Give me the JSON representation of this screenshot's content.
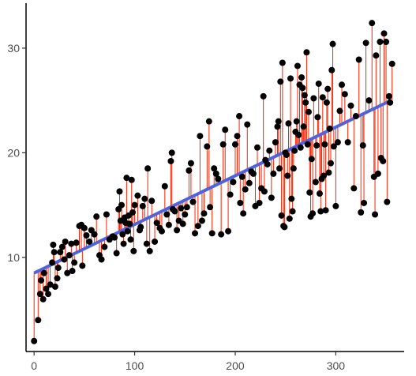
{
  "chart_data": {
    "type": "scatter",
    "title": "",
    "xlabel": "",
    "ylabel": "",
    "xlim": [
      -8,
      368
    ],
    "ylim": [
      1,
      34.3
    ],
    "x_ticks": [
      0,
      100,
      200,
      300
    ],
    "y_ticks": [
      10,
      20,
      30
    ],
    "x_tick_labels": [
      "0",
      "100",
      "200",
      "300"
    ],
    "y_tick_labels": [
      "10",
      "20",
      "30"
    ],
    "grid": false,
    "legend": "none",
    "regression": {
      "intercept": 8.5,
      "slope": 0.0465,
      "x_range": [
        0,
        355
      ],
      "color": "#4f63dd"
    },
    "residual_color": "#ff2200",
    "point_color": "#000000",
    "points": [
      [
        0,
        2.0
      ],
      [
        4,
        4.0
      ],
      [
        6,
        6.5
      ],
      [
        7,
        7.8
      ],
      [
        9,
        6.0
      ],
      [
        10,
        8.5
      ],
      [
        12,
        7.0
      ],
      [
        14,
        6.5
      ],
      [
        16,
        7.4
      ],
      [
        18,
        9.5
      ],
      [
        19,
        11.2
      ],
      [
        20,
        10.5
      ],
      [
        21,
        7.2
      ],
      [
        23,
        8.0
      ],
      [
        24,
        9.0
      ],
      [
        26,
        10.5
      ],
      [
        28,
        11.0
      ],
      [
        30,
        9.8
      ],
      [
        31,
        11.5
      ],
      [
        33,
        8.5
      ],
      [
        35,
        10.2
      ],
      [
        37,
        11.3
      ],
      [
        38,
        8.7
      ],
      [
        40,
        9.5
      ],
      [
        42,
        11.4
      ],
      [
        45,
        13.0
      ],
      [
        47,
        13.1
      ],
      [
        48,
        9.2
      ],
      [
        50,
        12.8
      ],
      [
        52,
        12.1
      ],
      [
        55,
        11.5
      ],
      [
        57,
        12.6
      ],
      [
        60,
        12.2
      ],
      [
        62,
        13.9
      ],
      [
        65,
        10.2
      ],
      [
        67,
        9.8
      ],
      [
        70,
        11.0
      ],
      [
        72,
        14.1
      ],
      [
        75,
        11.7
      ],
      [
        78,
        12.0
      ],
      [
        80,
        11.9
      ],
      [
        82,
        10.4
      ],
      [
        84,
        14.6
      ],
      [
        85,
        16.3
      ],
      [
        86,
        13.5
      ],
      [
        87,
        15.0
      ],
      [
        88,
        12.2
      ],
      [
        89,
        11.3
      ],
      [
        90,
        13.8
      ],
      [
        91,
        13.3
      ],
      [
        92,
        17.6
      ],
      [
        93,
        12.5
      ],
      [
        94,
        14.0
      ],
      [
        95,
        13.2
      ],
      [
        96,
        11.7
      ],
      [
        97,
        17.4
      ],
      [
        98,
        14.3
      ],
      [
        99,
        10.6
      ],
      [
        100,
        15.0
      ],
      [
        103,
        15.9
      ],
      [
        105,
        12.6
      ],
      [
        106,
        12.9
      ],
      [
        108,
        14.9
      ],
      [
        110,
        15.6
      ],
      [
        112,
        11.3
      ],
      [
        113,
        18.5
      ],
      [
        115,
        10.6
      ],
      [
        117,
        15.4
      ],
      [
        120,
        11.5
      ],
      [
        122,
        13.3
      ],
      [
        125,
        12.8
      ],
      [
        127,
        12.5
      ],
      [
        130,
        16.8
      ],
      [
        132,
        14.1
      ],
      [
        134,
        13.1
      ],
      [
        136,
        19.2
      ],
      [
        137,
        20.0
      ],
      [
        138,
        14.6
      ],
      [
        140,
        14.4
      ],
      [
        142,
        12.6
      ],
      [
        144,
        13.5
      ],
      [
        146,
        14.7
      ],
      [
        148,
        13.2
      ],
      [
        150,
        14.1
      ],
      [
        152,
        14.8
      ],
      [
        154,
        18.3
      ],
      [
        156,
        19.0
      ],
      [
        158,
        15.3
      ],
      [
        160,
        12.3
      ],
      [
        163,
        13.0
      ],
      [
        165,
        21.6
      ],
      [
        167,
        13.5
      ],
      [
        169,
        14.2
      ],
      [
        172,
        20.6
      ],
      [
        174,
        23.0
      ],
      [
        175,
        14.8
      ],
      [
        177,
        12.3
      ],
      [
        179,
        18.5
      ],
      [
        181,
        18.0
      ],
      [
        183,
        17.5
      ],
      [
        186,
        12.2
      ],
      [
        188,
        20.8
      ],
      [
        190,
        22.2
      ],
      [
        193,
        12.5
      ],
      [
        195,
        16.0
      ],
      [
        198,
        17.2
      ],
      [
        200,
        20.8
      ],
      [
        202,
        21.6
      ],
      [
        204,
        23.5
      ],
      [
        205,
        15.2
      ],
      [
        207,
        17.7
      ],
      [
        208,
        14.2
      ],
      [
        210,
        16.5
      ],
      [
        212,
        22.7
      ],
      [
        214,
        17.1
      ],
      [
        216,
        18.2
      ],
      [
        218,
        18.0
      ],
      [
        220,
        14.9
      ],
      [
        222,
        20.5
      ],
      [
        224,
        15.2
      ],
      [
        226,
        16.6
      ],
      [
        228,
        25.4
      ],
      [
        229,
        16.3
      ],
      [
        230,
        19.3
      ],
      [
        232,
        18.9
      ],
      [
        234,
        20.2
      ],
      [
        236,
        15.7
      ],
      [
        238,
        18.0
      ],
      [
        240,
        21.0
      ],
      [
        242,
        22.5
      ],
      [
        243,
        23.0
      ],
      [
        244,
        18.5
      ],
      [
        245,
        26.8
      ],
      [
        246,
        14.0
      ],
      [
        247,
        28.6
      ],
      [
        248,
        13.0
      ],
      [
        249,
        12.9
      ],
      [
        250,
        20.0
      ],
      [
        251,
        19.8
      ],
      [
        252,
        17.8
      ],
      [
        253,
        22.8
      ],
      [
        254,
        13.7
      ],
      [
        255,
        27.1
      ],
      [
        256,
        15.6
      ],
      [
        257,
        14.4
      ],
      [
        258,
        18.5
      ],
      [
        259,
        20.2
      ],
      [
        260,
        22.0
      ],
      [
        261,
        23.0
      ],
      [
        262,
        28.3
      ],
      [
        263,
        21.7
      ],
      [
        264,
        26.5
      ],
      [
        265,
        20.5
      ],
      [
        266,
        27.2
      ],
      [
        267,
        26.2
      ],
      [
        268,
        22.5
      ],
      [
        269,
        25.5
      ],
      [
        270,
        24.8
      ],
      [
        271,
        29.6
      ],
      [
        272,
        20.8
      ],
      [
        273,
        23.9
      ],
      [
        274,
        16.2
      ],
      [
        275,
        13.9
      ],
      [
        276,
        19.4
      ],
      [
        277,
        14.2
      ],
      [
        278,
        25.2
      ],
      [
        280,
        17.2
      ],
      [
        281,
        20.7
      ],
      [
        282,
        23.4
      ],
      [
        283,
        26.6
      ],
      [
        284,
        16.1
      ],
      [
        285,
        14.4
      ],
      [
        286,
        17.5
      ],
      [
        287,
        25.3
      ],
      [
        288,
        17.8
      ],
      [
        289,
        20.8
      ],
      [
        290,
        14.5
      ],
      [
        291,
        24.8
      ],
      [
        292,
        26.1
      ],
      [
        293,
        18.1
      ],
      [
        294,
        22.3
      ],
      [
        295,
        19.0
      ],
      [
        296,
        27.9
      ],
      [
        297,
        30.4
      ],
      [
        298,
        20.6
      ],
      [
        300,
        14.9
      ],
      [
        302,
        21.0
      ],
      [
        304,
        24.0
      ],
      [
        306,
        26.5
      ],
      [
        309,
        25.6
      ],
      [
        312,
        21.0
      ],
      [
        315,
        24.5
      ],
      [
        318,
        16.6
      ],
      [
        320,
        23.5
      ],
      [
        323,
        28.9
      ],
      [
        325,
        14.3
      ],
      [
        327,
        20.7
      ],
      [
        328,
        15.2
      ],
      [
        330,
        30.5
      ],
      [
        333,
        25.0
      ],
      [
        336,
        32.4
      ],
      [
        338,
        17.7
      ],
      [
        339,
        14.1
      ],
      [
        340,
        29.3
      ],
      [
        342,
        18.0
      ],
      [
        344,
        30.6
      ],
      [
        345,
        19.5
      ],
      [
        347,
        19.2
      ],
      [
        348,
        31.4
      ],
      [
        350,
        30.6
      ],
      [
        351,
        15.3
      ],
      [
        353,
        25.4
      ],
      [
        354,
        24.8
      ],
      [
        356,
        28.5
      ]
    ]
  }
}
